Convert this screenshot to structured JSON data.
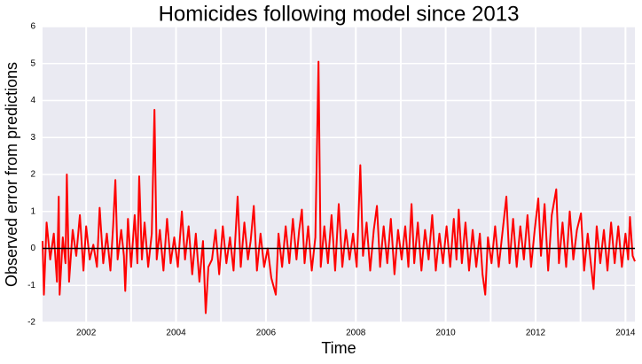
{
  "chart_data": {
    "type": "line",
    "title": "Homicides following model since 2013",
    "xlabel": "Time",
    "ylabel": "Observed error from predictions",
    "xlim": [
      2001.03,
      2014.21
    ],
    "ylim": [
      -2,
      6
    ],
    "xticks": [
      2002,
      2004,
      2006,
      2008,
      2010,
      2012,
      2014
    ],
    "yticks": [
      -2,
      -1,
      0,
      1,
      2,
      3,
      4,
      5,
      6
    ],
    "minor_xticks": [
      2003,
      2005,
      2007,
      2009,
      2011,
      2013
    ],
    "grid": true,
    "hline": 0,
    "hline_color": "#000000",
    "background": "#eaeaf2",
    "x": [
      2001.03,
      2001.06,
      2001.12,
      2001.2,
      2001.28,
      2001.35,
      2001.39,
      2001.41,
      2001.48,
      2001.54,
      2001.57,
      2001.62,
      2001.7,
      2001.78,
      2001.86,
      2001.94,
      2002.0,
      2002.08,
      2002.16,
      2002.24,
      2002.3,
      2002.38,
      2002.46,
      2002.54,
      2002.6,
      2002.65,
      2002.7,
      2002.78,
      2002.84,
      2002.87,
      2002.93,
      2003.0,
      2003.08,
      2003.14,
      2003.18,
      2003.24,
      2003.3,
      2003.38,
      2003.46,
      2003.52,
      2003.57,
      2003.64,
      2003.72,
      2003.8,
      2003.88,
      2003.96,
      2004.04,
      2004.13,
      2004.2,
      2004.28,
      2004.36,
      2004.44,
      2004.52,
      2004.6,
      2004.66,
      2004.72,
      2004.8,
      2004.88,
      2004.96,
      2005.04,
      2005.12,
      2005.2,
      2005.28,
      2005.37,
      2005.44,
      2005.52,
      2005.6,
      2005.66,
      2005.73,
      2005.8,
      2005.88,
      2005.96,
      2006.04,
      2006.12,
      2006.22,
      2006.28,
      2006.36,
      2006.44,
      2006.52,
      2006.6,
      2006.68,
      2006.74,
      2006.8,
      2006.86,
      2006.94,
      2007.02,
      2007.1,
      2007.17,
      2007.22,
      2007.3,
      2007.38,
      2007.46,
      2007.54,
      2007.62,
      2007.7,
      2007.78,
      2007.86,
      2007.94,
      2008.02,
      2008.1,
      2008.16,
      2008.24,
      2008.32,
      2008.4,
      2008.47,
      2008.54,
      2008.62,
      2008.7,
      2008.78,
      2008.86,
      2008.94,
      2009.02,
      2009.1,
      2009.17,
      2009.24,
      2009.3,
      2009.38,
      2009.46,
      2009.54,
      2009.62,
      2009.7,
      2009.78,
      2009.86,
      2009.94,
      2010.02,
      2010.1,
      2010.18,
      2010.24,
      2010.29,
      2010.36,
      2010.44,
      2010.52,
      2010.6,
      2010.68,
      2010.76,
      2010.82,
      2010.88,
      2010.94,
      2011.02,
      2011.1,
      2011.18,
      2011.26,
      2011.35,
      2011.42,
      2011.5,
      2011.58,
      2011.66,
      2011.74,
      2011.82,
      2011.9,
      2011.98,
      2012.06,
      2012.12,
      2012.2,
      2012.28,
      2012.36,
      2012.46,
      2012.52,
      2012.6,
      2012.68,
      2012.76,
      2012.84,
      2012.92,
      2013.01,
      2013.08,
      2013.16,
      2013.22,
      2013.29,
      2013.36,
      2013.44,
      2013.52,
      2013.6,
      2013.68,
      2013.76,
      2013.84,
      2013.92,
      2014.0,
      2014.06,
      2014.1,
      2014.16,
      2014.21
    ],
    "series": [
      {
        "color": "#ff0000",
        "values": [
          0.2,
          -1.25,
          0.7,
          -0.3,
          0.4,
          -0.9,
          1.4,
          -1.25,
          0.3,
          -0.4,
          2.0,
          -0.9,
          0.5,
          -0.2,
          0.9,
          -0.6,
          0.6,
          -0.3,
          0.1,
          -0.5,
          1.1,
          -0.4,
          0.4,
          -0.6,
          0.6,
          1.85,
          -0.3,
          0.5,
          -0.2,
          -1.15,
          0.8,
          -0.5,
          0.9,
          -0.4,
          1.95,
          -0.3,
          0.7,
          -0.5,
          0.4,
          3.75,
          -0.3,
          0.5,
          -0.6,
          0.8,
          -0.4,
          0.3,
          -0.5,
          1.0,
          -0.3,
          0.6,
          -0.7,
          0.4,
          -0.9,
          0.2,
          -1.75,
          -0.5,
          -0.3,
          0.5,
          -0.7,
          0.6,
          -0.4,
          0.3,
          -0.6,
          1.4,
          -0.5,
          0.7,
          -0.3,
          0.2,
          1.15,
          -0.6,
          0.4,
          -0.5,
          0.0,
          -0.8,
          -1.25,
          0.4,
          -0.5,
          0.6,
          -0.4,
          0.8,
          -0.3,
          0.5,
          1.05,
          -0.4,
          0.6,
          -0.6,
          0.3,
          5.05,
          -0.5,
          0.6,
          -0.4,
          0.9,
          -0.6,
          1.2,
          -0.5,
          0.5,
          -0.3,
          0.4,
          -0.5,
          2.25,
          -0.2,
          0.7,
          -0.6,
          0.5,
          1.15,
          -0.5,
          0.6,
          -0.4,
          0.8,
          -0.7,
          0.5,
          -0.3,
          0.6,
          -0.5,
          1.2,
          -0.4,
          0.7,
          -0.6,
          0.5,
          -0.3,
          0.9,
          -0.6,
          0.4,
          -0.4,
          0.6,
          -0.5,
          0.8,
          -0.3,
          1.05,
          -0.4,
          0.7,
          -0.6,
          0.5,
          -0.5,
          0.4,
          -0.7,
          -1.25,
          0.3,
          -0.4,
          0.6,
          -0.5,
          0.4,
          1.4,
          -0.4,
          0.8,
          -0.5,
          0.6,
          -0.3,
          0.9,
          -0.5,
          0.5,
          1.35,
          -0.2,
          1.2,
          -0.6,
          0.9,
          1.6,
          -0.4,
          0.7,
          -0.5,
          1.0,
          -0.3,
          0.5,
          0.95,
          -0.6,
          0.4,
          -0.3,
          -1.1,
          0.6,
          -0.4,
          0.5,
          -0.6,
          0.7,
          -0.4,
          0.6,
          -0.5,
          0.4,
          -0.3,
          0.85,
          -0.2,
          -0.35
        ]
      }
    ]
  }
}
